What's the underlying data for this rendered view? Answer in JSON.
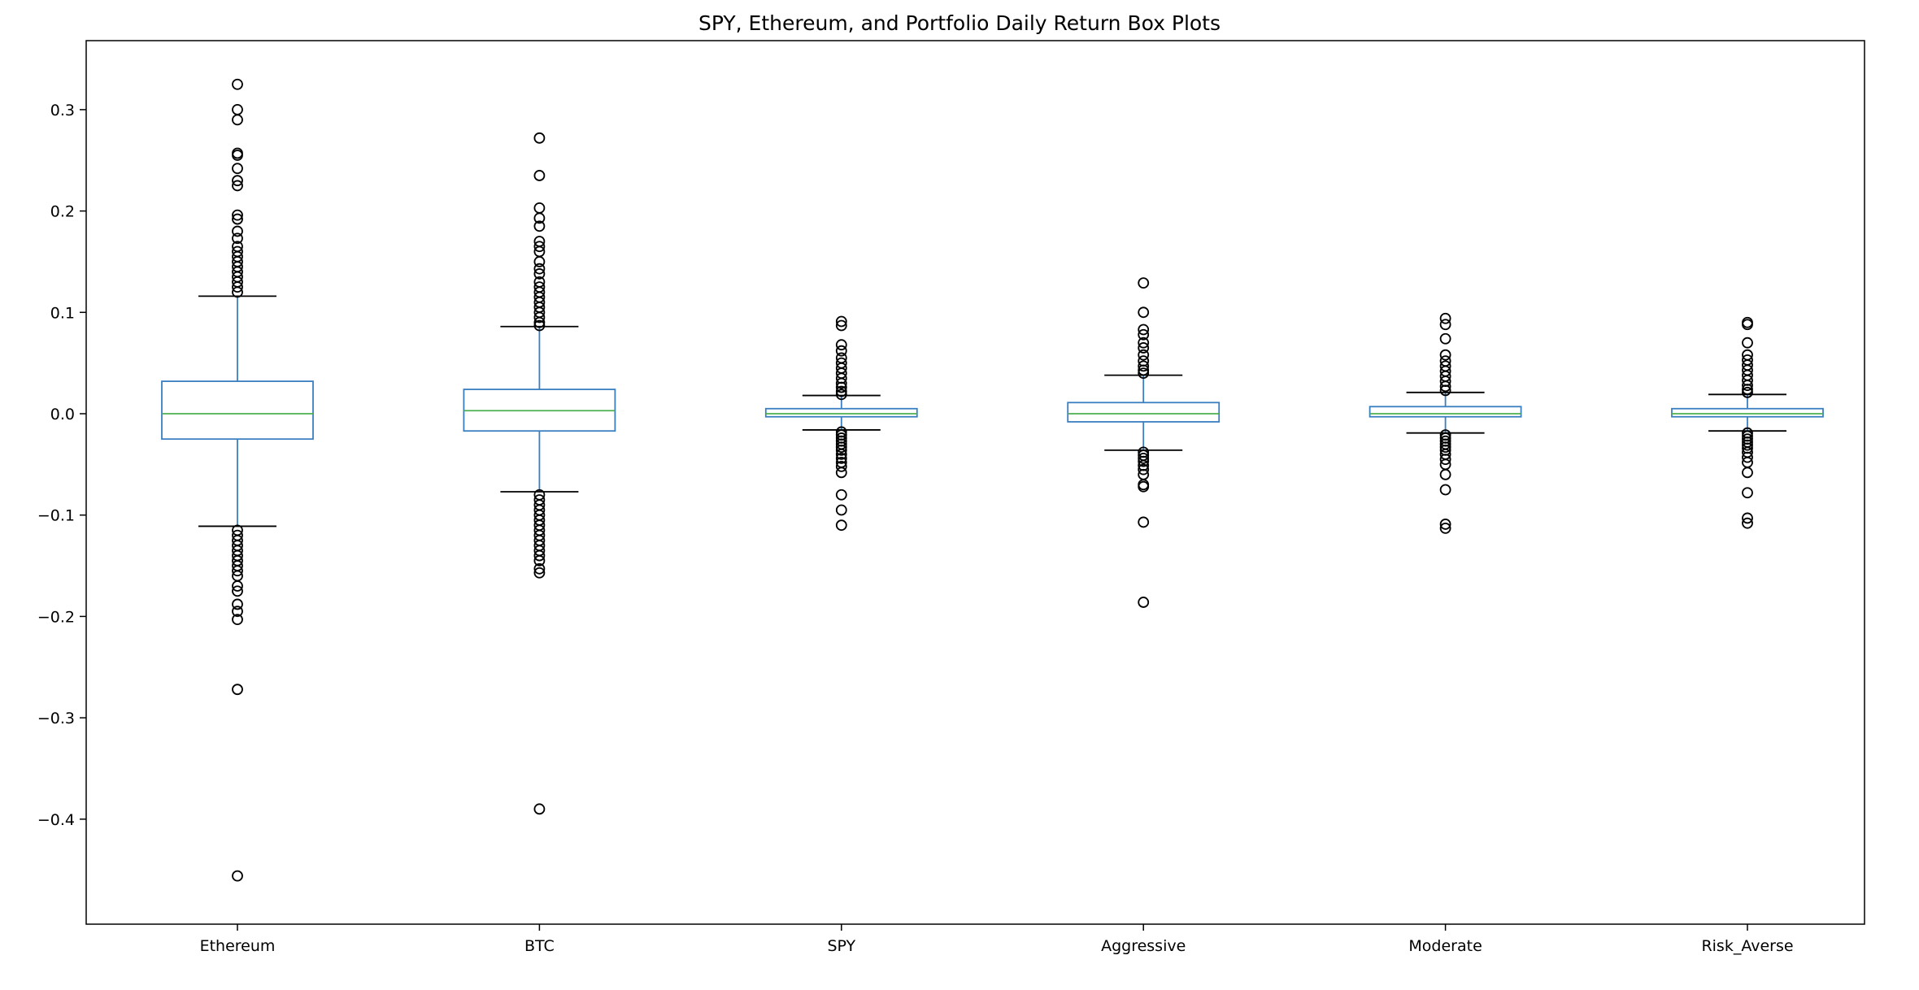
{
  "chart_data": {
    "type": "box",
    "title": "SPY, Ethereum, and Portfolio Daily Return Box Plots",
    "xlabel": "",
    "ylabel": "",
    "ylim": [
      -0.5,
      0.37
    ],
    "yticks": [
      0.3,
      0.2,
      0.1,
      0.0,
      -0.1,
      -0.2,
      -0.3,
      -0.4
    ],
    "ytick_labels": [
      "0.3",
      "0.2",
      "0.1",
      "0.0",
      "−0.1",
      "−0.2",
      "−0.3",
      "−0.4"
    ],
    "grid": false,
    "colors": {
      "box": "#3a7fc1",
      "median": "#4caf50",
      "whisker_cap": "#000000",
      "flier": "#000000",
      "axes": "#000000"
    },
    "categories": [
      "Ethereum",
      "BTC",
      "SPY",
      "Aggressive",
      "Moderate",
      "Risk_Averse"
    ],
    "series": [
      {
        "name": "Ethereum",
        "q1": -0.025,
        "median": 0.0,
        "q3": 0.032,
        "whisker_low": -0.111,
        "whisker_high": 0.116,
        "fliers": [
          0.325,
          0.3,
          0.29,
          0.257,
          0.255,
          0.242,
          0.23,
          0.225,
          0.196,
          0.192,
          0.18,
          0.173,
          0.165,
          0.16,
          0.155,
          0.15,
          0.145,
          0.14,
          0.135,
          0.13,
          0.125,
          0.12,
          -0.115,
          -0.12,
          -0.125,
          -0.13,
          -0.135,
          -0.14,
          -0.145,
          -0.15,
          -0.155,
          -0.16,
          -0.17,
          -0.175,
          -0.188,
          -0.195,
          -0.203,
          -0.272,
          -0.456
        ]
      },
      {
        "name": "BTC",
        "q1": -0.017,
        "median": 0.003,
        "q3": 0.024,
        "whisker_low": -0.077,
        "whisker_high": 0.086,
        "fliers": [
          0.272,
          0.235,
          0.203,
          0.193,
          0.185,
          0.17,
          0.165,
          0.16,
          0.15,
          0.143,
          0.138,
          0.13,
          0.125,
          0.12,
          0.115,
          0.11,
          0.105,
          0.1,
          0.095,
          0.09,
          0.087,
          -0.08,
          -0.085,
          -0.09,
          -0.095,
          -0.1,
          -0.105,
          -0.11,
          -0.115,
          -0.12,
          -0.125,
          -0.13,
          -0.135,
          -0.14,
          -0.145,
          -0.153,
          -0.157,
          -0.39
        ]
      },
      {
        "name": "SPY",
        "q1": -0.003,
        "median": 0.0,
        "q3": 0.005,
        "whisker_low": -0.016,
        "whisker_high": 0.018,
        "fliers": [
          0.091,
          0.087,
          0.068,
          0.062,
          0.055,
          0.05,
          0.045,
          0.04,
          0.035,
          0.03,
          0.026,
          0.022,
          0.019,
          -0.018,
          -0.021,
          -0.024,
          -0.027,
          -0.03,
          -0.033,
          -0.036,
          -0.04,
          -0.044,
          -0.048,
          -0.052,
          -0.058,
          -0.08,
          -0.095,
          -0.11
        ]
      },
      {
        "name": "Aggressive",
        "q1": -0.008,
        "median": 0.0,
        "q3": 0.011,
        "whisker_low": -0.036,
        "whisker_high": 0.038,
        "fliers": [
          0.129,
          0.1,
          0.083,
          0.078,
          0.07,
          0.065,
          0.058,
          0.052,
          0.047,
          0.043,
          0.04,
          -0.038,
          -0.041,
          -0.044,
          -0.047,
          -0.051,
          -0.055,
          -0.06,
          -0.07,
          -0.072,
          -0.107,
          -0.186
        ]
      },
      {
        "name": "Moderate",
        "q1": -0.003,
        "median": 0.0,
        "q3": 0.007,
        "whisker_low": -0.019,
        "whisker_high": 0.021,
        "fliers": [
          0.094,
          0.088,
          0.074,
          0.058,
          0.052,
          0.047,
          0.042,
          0.037,
          0.032,
          0.027,
          0.023,
          -0.021,
          -0.024,
          -0.027,
          -0.03,
          -0.033,
          -0.036,
          -0.04,
          -0.045,
          -0.05,
          -0.06,
          -0.075,
          -0.109,
          -0.113
        ]
      },
      {
        "name": "Risk_Averse",
        "q1": -0.003,
        "median": 0.0,
        "q3": 0.005,
        "whisker_low": -0.017,
        "whisker_high": 0.019,
        "fliers": [
          0.09,
          0.088,
          0.07,
          0.058,
          0.053,
          0.048,
          0.043,
          0.038,
          0.033,
          0.028,
          0.024,
          0.021,
          -0.019,
          -0.022,
          -0.025,
          -0.028,
          -0.031,
          -0.034,
          -0.038,
          -0.043,
          -0.048,
          -0.058,
          -0.078,
          -0.103,
          -0.108
        ]
      }
    ]
  }
}
